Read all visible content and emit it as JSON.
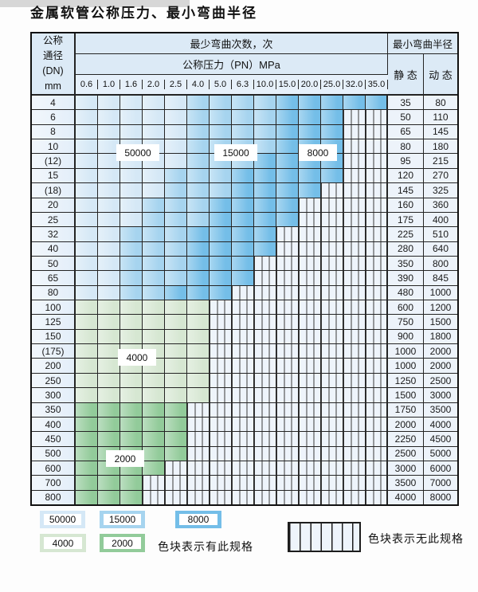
{
  "title": "金属软管公称压力、最小弯曲半径",
  "palette": {
    "blue_light": "#d5e8f6",
    "blue_mid": "#a6d4ef",
    "blue_dark": "#74bee8",
    "green_light": "#d6e7d2",
    "green_mid": "#92cb9a",
    "stripe_bg": "#eef4fb",
    "grid_line": "#242424",
    "header_bg": "#dceaf6"
  },
  "table": {
    "header": {
      "dn": "公称\n通径\n(DN)\nmm",
      "cycles": "最少弯曲次数，次",
      "pn": "公称压力（PN）MPa",
      "radius": "最小弯曲半径",
      "static": "静 态",
      "dynamic": "动 态"
    },
    "pressures": [
      "0.6",
      "1.0",
      "1.6",
      "2.0",
      "2.5",
      "4.0",
      "5.0",
      "6.3",
      "10.0",
      "15.0",
      "20.0",
      "25.0",
      "32.0",
      "35.0"
    ],
    "rows": [
      {
        "dn": "4",
        "s": "35",
        "d": "80",
        "f": "b",
        "z": [
          5,
          9,
          14
        ]
      },
      {
        "dn": "6",
        "s": "50",
        "d": "110",
        "f": "b",
        "z": [
          5,
          9,
          12
        ]
      },
      {
        "dn": "8",
        "s": "65",
        "d": "145",
        "f": "b",
        "z": [
          5,
          9,
          12
        ]
      },
      {
        "dn": "10",
        "s": "80",
        "d": "180",
        "f": "b",
        "z": [
          5,
          9,
          12
        ]
      },
      {
        "dn": "(12)",
        "s": "95",
        "d": "215",
        "f": "b",
        "z": [
          5,
          8,
          12
        ]
      },
      {
        "dn": "15",
        "s": "120",
        "d": "270",
        "f": "b",
        "z": [
          4,
          7,
          12
        ]
      },
      {
        "dn": "(18)",
        "s": "145",
        "d": "325",
        "f": "b",
        "z": [
          4,
          7,
          11
        ]
      },
      {
        "dn": "20",
        "s": "160",
        "d": "360",
        "f": "b",
        "z": [
          3,
          6,
          10
        ]
      },
      {
        "dn": "25",
        "s": "175",
        "d": "400",
        "f": "b",
        "z": [
          3,
          6,
          10
        ]
      },
      {
        "dn": "32",
        "s": "225",
        "d": "510",
        "f": "b",
        "z": [
          2,
          5,
          9
        ]
      },
      {
        "dn": "40",
        "s": "280",
        "d": "640",
        "f": "b",
        "z": [
          2,
          5,
          9
        ]
      },
      {
        "dn": "50",
        "s": "350",
        "d": "800",
        "f": "b",
        "z": [
          2,
          5,
          8
        ]
      },
      {
        "dn": "65",
        "s": "390",
        "d": "845",
        "f": "b",
        "z": [
          2,
          5,
          8
        ]
      },
      {
        "dn": "80",
        "s": "480",
        "d": "1000",
        "f": "b",
        "z": [
          2,
          4,
          7
        ]
      },
      {
        "dn": "100",
        "s": "600",
        "d": "1200",
        "f": "g",
        "z": [
          6
        ]
      },
      {
        "dn": "125",
        "s": "750",
        "d": "1500",
        "f": "g",
        "z": [
          6
        ]
      },
      {
        "dn": "150",
        "s": "900",
        "d": "1800",
        "f": "g",
        "z": [
          6
        ]
      },
      {
        "dn": "(175)",
        "s": "1000",
        "d": "2000",
        "f": "g",
        "z": [
          6
        ]
      },
      {
        "dn": "200",
        "s": "1000",
        "d": "2000",
        "f": "g",
        "z": [
          6
        ]
      },
      {
        "dn": "250",
        "s": "1250",
        "d": "2500",
        "f": "g",
        "z": [
          6
        ]
      },
      {
        "dn": "300",
        "s": "1500",
        "d": "3000",
        "f": "g",
        "z": [
          6
        ]
      },
      {
        "dn": "350",
        "s": "1750",
        "d": "3500",
        "f": "G",
        "z": [
          5
        ]
      },
      {
        "dn": "400",
        "s": "2000",
        "d": "4000",
        "f": "G",
        "z": [
          5
        ]
      },
      {
        "dn": "450",
        "s": "2250",
        "d": "4500",
        "f": "G",
        "z": [
          5
        ]
      },
      {
        "dn": "500",
        "s": "2500",
        "d": "5000",
        "f": "G",
        "z": [
          5
        ]
      },
      {
        "dn": "600",
        "s": "3000",
        "d": "6000",
        "f": "G",
        "z": [
          4
        ]
      },
      {
        "dn": "700",
        "s": "3500",
        "d": "7000",
        "f": "G",
        "z": [
          3
        ]
      },
      {
        "dn": "800",
        "s": "4000",
        "d": "8000",
        "f": "G",
        "z": [
          3
        ]
      }
    ]
  },
  "overlays": {
    "cycles_50000": "50000",
    "cycles_15000": "15000",
    "cycles_8000": "8000",
    "cycles_4000": "4000",
    "cycles_2000": "2000"
  },
  "legend": {
    "items": [
      {
        "label": "50000",
        "color": "#d5e8f6"
      },
      {
        "label": "15000",
        "color": "#a6d4ef"
      },
      {
        "label": "8000",
        "color": "#74bee8"
      },
      {
        "label": "4000",
        "color": "#d6e7d2"
      },
      {
        "label": "2000",
        "color": "#92cb9a"
      }
    ],
    "has_spec_text": "色块表示有此规格",
    "no_spec_text": "色块表示无此规格"
  }
}
